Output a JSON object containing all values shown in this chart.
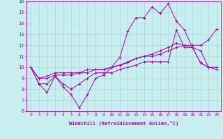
{
  "background_color": "#c8eef0",
  "line_color": "#aa00aa",
  "xlabel": "Windchill (Refroidissement éolien,°C)",
  "xlim": [
    -0.5,
    23.5
  ],
  "ylim": [
    6,
    16
  ],
  "xticks": [
    0,
    1,
    2,
    3,
    4,
    5,
    6,
    7,
    8,
    9,
    10,
    11,
    12,
    13,
    14,
    15,
    16,
    17,
    18,
    19,
    20,
    21,
    22,
    23
  ],
  "yticks": [
    6,
    7,
    8,
    9,
    10,
    11,
    12,
    13,
    14,
    15,
    16
  ],
  "series": [
    [
      10,
      8.5,
      7.7,
      9.2,
      8.2,
      7.5,
      6.3,
      7.5,
      9.0,
      9.3,
      10.0,
      10.9,
      13.3,
      14.5,
      14.5,
      15.5,
      14.9,
      15.8,
      14.2,
      13.4,
      11.8,
      10.4,
      10.0,
      10.0
    ],
    [
      10,
      8.5,
      8.5,
      9.2,
      8.5,
      8.0,
      8.5,
      9.0,
      9.5,
      9.5,
      9.5,
      9.8,
      10.0,
      10.2,
      10.5,
      10.5,
      10.5,
      10.5,
      13.4,
      11.8,
      11.8,
      10.4,
      10.0,
      10.0
    ],
    [
      10,
      9.0,
      9.0,
      9.3,
      9.3,
      9.3,
      9.5,
      9.5,
      9.8,
      9.8,
      10.0,
      10.2,
      10.4,
      10.8,
      11.0,
      11.2,
      11.5,
      11.8,
      12.2,
      12.0,
      11.8,
      11.5,
      10.0,
      9.8
    ],
    [
      10,
      9.0,
      9.2,
      9.5,
      9.5,
      9.5,
      9.5,
      9.8,
      9.8,
      9.8,
      10.0,
      10.2,
      10.5,
      10.8,
      11.0,
      11.0,
      11.2,
      11.5,
      11.8,
      12.0,
      12.0,
      12.0,
      12.5,
      13.5
    ]
  ]
}
